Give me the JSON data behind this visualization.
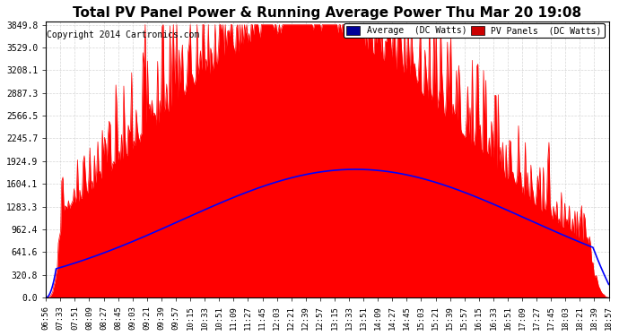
{
  "title": "Total PV Panel Power & Running Average Power Thu Mar 20 19:08",
  "copyright": "Copyright 2014 Cartronics.com",
  "ylabel_right": "DC Watts",
  "ymax": 3849.8,
  "yticks": [
    0.0,
    320.8,
    641.6,
    962.4,
    1283.3,
    1604.1,
    1924.9,
    2245.7,
    2566.5,
    2887.3,
    3208.1,
    3529.0,
    3849.8
  ],
  "background_color": "#ffffff",
  "plot_bg_color": "#ffffff",
  "grid_color": "#cccccc",
  "pv_color": "#ff0000",
  "avg_color": "#0000ff",
  "legend_avg_bg": "#0000aa",
  "legend_pv_bg": "#cc0000",
  "n_points": 145
}
